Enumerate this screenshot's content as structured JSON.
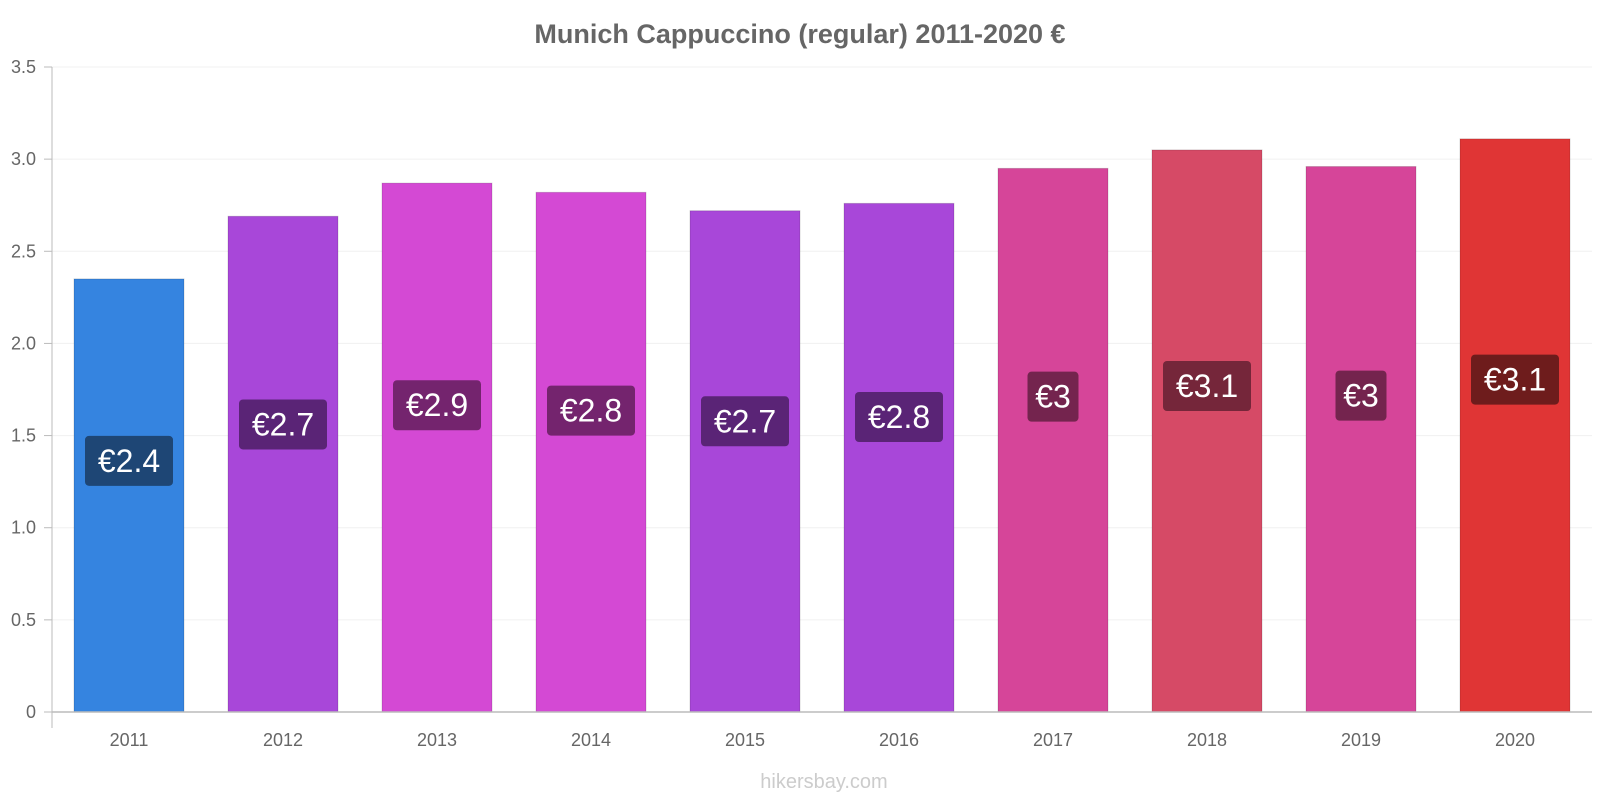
{
  "chart_data": {
    "type": "bar",
    "title": "Munich Cappuccino (regular) 2011-2020 €",
    "categories": [
      "2011",
      "2012",
      "2013",
      "2014",
      "2015",
      "2016",
      "2017",
      "2018",
      "2019",
      "2020"
    ],
    "values": [
      2.35,
      2.69,
      2.87,
      2.82,
      2.72,
      2.76,
      2.95,
      3.05,
      2.96,
      3.11
    ],
    "data_labels": [
      "€2.4",
      "€2.7",
      "€2.9",
      "€2.8",
      "€2.7",
      "€2.8",
      "€3",
      "€3.1",
      "€3",
      "€3.1"
    ],
    "bar_colors": [
      "#3584e0",
      "#a847d9",
      "#d449d4",
      "#d449d4",
      "#a847d9",
      "#a847d9",
      "#d64599",
      "#d64a66",
      "#d64599",
      "#e03535"
    ],
    "label_colors": [
      "#1e4675",
      "#5a2476",
      "#74246e",
      "#74246e",
      "#5a2476",
      "#5a2476",
      "#74244e",
      "#75263a",
      "#74244e",
      "#6e1c1c"
    ],
    "y_ticks": [
      "0",
      "0.5",
      "1.0",
      "1.5",
      "2.0",
      "2.5",
      "3.0",
      "3.5"
    ],
    "ylim": [
      0,
      3.5
    ],
    "grid": true,
    "xlabel": "",
    "ylabel": ""
  },
  "watermark": "hikersbay.com"
}
